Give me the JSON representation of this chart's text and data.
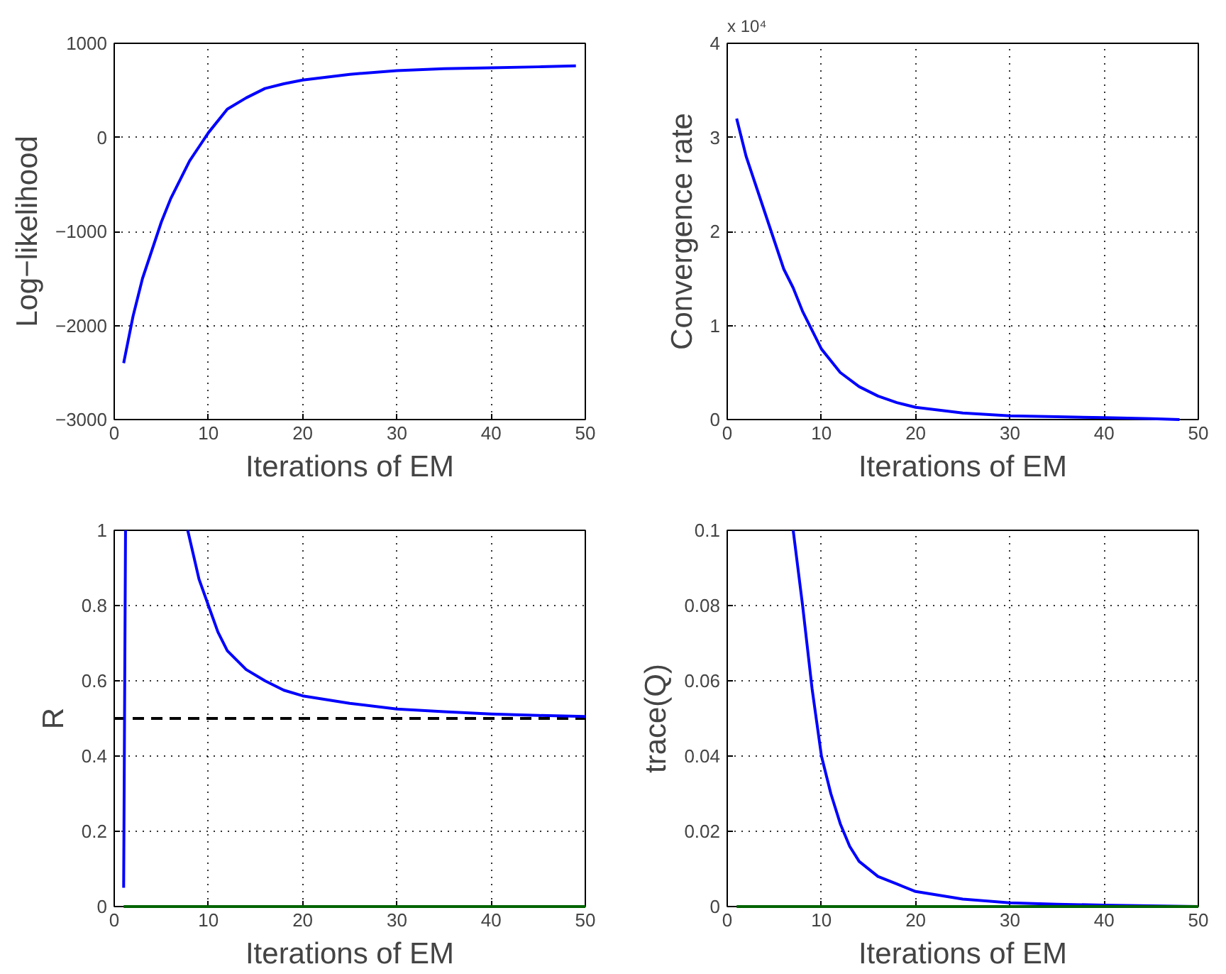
{
  "chart_data": [
    {
      "type": "line",
      "ylabel": "Log−likelihood",
      "xlabel": "Iterations of EM",
      "xlim": [
        0,
        50
      ],
      "xticks": [
        0,
        10,
        20,
        30,
        40,
        50
      ],
      "ylim": [
        -3000,
        1000
      ],
      "yticks": [
        -3000,
        -2000,
        -1000,
        0,
        1000
      ],
      "grid": true,
      "line_style": "solid",
      "series": [
        {
          "color": "#0000ff",
          "x": [
            1,
            2,
            3,
            4,
            5,
            6,
            7,
            8,
            9,
            10,
            12,
            14,
            16,
            18,
            20,
            25,
            30,
            35,
            40,
            45,
            49
          ],
          "values": [
            -2400,
            -1900,
            -1500,
            -1200,
            -900,
            -650,
            -450,
            -250,
            -100,
            50,
            300,
            420,
            520,
            570,
            610,
            670,
            710,
            730,
            740,
            750,
            760
          ]
        }
      ]
    },
    {
      "type": "line",
      "ylabel": "Convergence rate",
      "xlabel": "Iterations of EM",
      "annotations": [
        "x 10⁴"
      ],
      "xlim": [
        0,
        50
      ],
      "xticks": [
        0,
        10,
        20,
        30,
        40,
        50
      ],
      "ylim": [
        0,
        4
      ],
      "yticks": [
        0,
        1,
        2,
        3,
        4
      ],
      "grid": true,
      "line_style": "solid",
      "series": [
        {
          "color": "#0000ff",
          "x": [
            1,
            2,
            3,
            4,
            5,
            6,
            7,
            8,
            9,
            10,
            12,
            14,
            16,
            18,
            20,
            25,
            30,
            35,
            40,
            45,
            48
          ],
          "values": [
            3.2,
            2.8,
            2.5,
            2.2,
            1.9,
            1.6,
            1.4,
            1.15,
            0.95,
            0.75,
            0.5,
            0.35,
            0.25,
            0.18,
            0.13,
            0.07,
            0.04,
            0.03,
            0.02,
            0.01,
            0.0
          ]
        }
      ]
    },
    {
      "type": "line",
      "ylabel": "R",
      "xlabel": "Iterations of EM",
      "xlim": [
        0,
        50
      ],
      "xticks": [
        0,
        10,
        20,
        30,
        40,
        50
      ],
      "ylim": [
        0,
        1
      ],
      "yticks": [
        0,
        0.2,
        0.4,
        0.6,
        0.8,
        1
      ],
      "grid": true,
      "line_style": "solid",
      "ref_lines": [
        {
          "axis": "y",
          "value": 0.5,
          "color": "#000000",
          "line_style": "dashed"
        }
      ],
      "series": [
        {
          "color": "#0000ff",
          "x": [
            1,
            1.2,
            4,
            7.8,
            9,
            10,
            11,
            12,
            14,
            16,
            18,
            20,
            25,
            30,
            35,
            40,
            45,
            50
          ],
          "values": [
            0.05,
            1,
            null,
            1,
            0.87,
            0.8,
            0.73,
            0.68,
            0.63,
            0.6,
            0.575,
            0.56,
            0.54,
            0.525,
            0.518,
            0.512,
            0.508,
            0.505
          ]
        },
        {
          "color": "#006400",
          "x": [
            1,
            50
          ],
          "values": [
            0,
            0
          ]
        }
      ]
    },
    {
      "type": "line",
      "ylabel": "trace(Q)",
      "xlabel": "Iterations of EM",
      "xlim": [
        0,
        50
      ],
      "xticks": [
        0,
        10,
        20,
        30,
        40,
        50
      ],
      "ylim": [
        0,
        0.1
      ],
      "yticks": [
        0,
        0.02,
        0.04,
        0.06,
        0.08,
        0.1
      ],
      "grid": true,
      "line_style": "solid",
      "series": [
        {
          "color": "#0000ff",
          "x": [
            7,
            8,
            9,
            10,
            11,
            12,
            13,
            14,
            16,
            18,
            20,
            25,
            30,
            35,
            40,
            45,
            50
          ],
          "values": [
            0.1,
            0.08,
            0.058,
            0.04,
            0.03,
            0.022,
            0.016,
            0.012,
            0.008,
            0.006,
            0.004,
            0.002,
            0.001,
            0.0006,
            0.0004,
            0.0002,
            0
          ]
        },
        {
          "color": "#006400",
          "x": [
            1,
            50
          ],
          "values": [
            0,
            0
          ]
        }
      ]
    }
  ]
}
